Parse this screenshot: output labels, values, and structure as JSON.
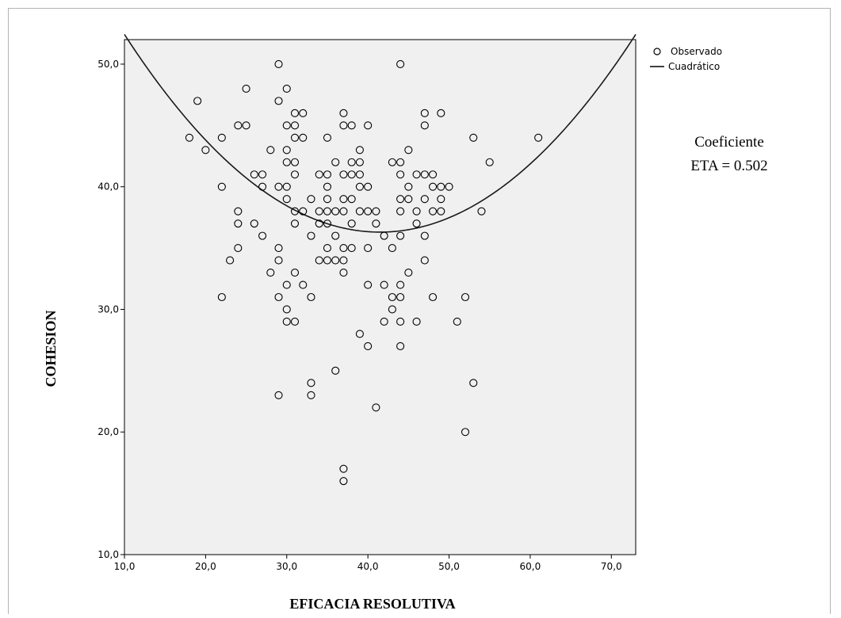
{
  "chart_data": {
    "type": "scatter",
    "xlabel": "EFICACIA RESOLUTIVA",
    "ylabel": "COHESION",
    "xlim": [
      10,
      73
    ],
    "ylim": [
      10,
      52
    ],
    "x_ticks": [
      "10,0",
      "20,0",
      "30,0",
      "40,0",
      "50,0",
      "60,0",
      "70,0"
    ],
    "x_tick_values": [
      10,
      20,
      30,
      40,
      50,
      60,
      70
    ],
    "y_ticks": [
      "10,0",
      "20,0",
      "30,0",
      "40,0",
      "50,0"
    ],
    "y_tick_values": [
      10,
      20,
      30,
      40,
      50
    ],
    "grid": false,
    "plot_background": "#f0f0f0",
    "legend": {
      "position": "top-right-outside",
      "entries": [
        {
          "label": "Observado",
          "marker": "circle"
        },
        {
          "label": "Cuadrático",
          "marker": "line"
        }
      ]
    },
    "annotation": {
      "lines": [
        "Coeficiente",
        "ETA = 0.502"
      ]
    },
    "series": [
      {
        "name": "Observado",
        "kind": "points",
        "color": "#000000",
        "points": [
          [
            18,
            44
          ],
          [
            19,
            47
          ],
          [
            20,
            43
          ],
          [
            22,
            44
          ],
          [
            22,
            40
          ],
          [
            22,
            31
          ],
          [
            23,
            34
          ],
          [
            24,
            45
          ],
          [
            24,
            38
          ],
          [
            24,
            37
          ],
          [
            24,
            35
          ],
          [
            25,
            48
          ],
          [
            25,
            45
          ],
          [
            26,
            41
          ],
          [
            26,
            37
          ],
          [
            27,
            41
          ],
          [
            27,
            40
          ],
          [
            27,
            36
          ],
          [
            28,
            43
          ],
          [
            28,
            33
          ],
          [
            29,
            50
          ],
          [
            29,
            47
          ],
          [
            29,
            40
          ],
          [
            29,
            35
          ],
          [
            29,
            34
          ],
          [
            29,
            31
          ],
          [
            29,
            23
          ],
          [
            30,
            48
          ],
          [
            30,
            45
          ],
          [
            30,
            43
          ],
          [
            30,
            42
          ],
          [
            30,
            40
          ],
          [
            30,
            39
          ],
          [
            30,
            32
          ],
          [
            30,
            30
          ],
          [
            30,
            29
          ],
          [
            31,
            46
          ],
          [
            31,
            45
          ],
          [
            31,
            44
          ],
          [
            31,
            42
          ],
          [
            31,
            41
          ],
          [
            31,
            38
          ],
          [
            31,
            37
          ],
          [
            31,
            33
          ],
          [
            31,
            29
          ],
          [
            32,
            46
          ],
          [
            32,
            44
          ],
          [
            32,
            38
          ],
          [
            32,
            32
          ],
          [
            33,
            39
          ],
          [
            33,
            36
          ],
          [
            33,
            31
          ],
          [
            33,
            24
          ],
          [
            33,
            23
          ],
          [
            34,
            41
          ],
          [
            34,
            38
          ],
          [
            34,
            37
          ],
          [
            34,
            34
          ],
          [
            35,
            44
          ],
          [
            35,
            41
          ],
          [
            35,
            40
          ],
          [
            35,
            39
          ],
          [
            35,
            38
          ],
          [
            35,
            37
          ],
          [
            35,
            35
          ],
          [
            35,
            34
          ],
          [
            36,
            42
          ],
          [
            36,
            38
          ],
          [
            36,
            36
          ],
          [
            36,
            34
          ],
          [
            36,
            25
          ],
          [
            37,
            46
          ],
          [
            37,
            45
          ],
          [
            37,
            41
          ],
          [
            37,
            39
          ],
          [
            37,
            38
          ],
          [
            37,
            35
          ],
          [
            37,
            34
          ],
          [
            37,
            33
          ],
          [
            37,
            17
          ],
          [
            37,
            16
          ],
          [
            38,
            45
          ],
          [
            38,
            42
          ],
          [
            38,
            41
          ],
          [
            38,
            39
          ],
          [
            38,
            37
          ],
          [
            38,
            35
          ],
          [
            39,
            43
          ],
          [
            39,
            42
          ],
          [
            39,
            41
          ],
          [
            39,
            40
          ],
          [
            39,
            38
          ],
          [
            39,
            28
          ],
          [
            40,
            45
          ],
          [
            40,
            40
          ],
          [
            40,
            38
          ],
          [
            40,
            35
          ],
          [
            40,
            32
          ],
          [
            40,
            27
          ],
          [
            41,
            38
          ],
          [
            41,
            37
          ],
          [
            41,
            22
          ],
          [
            42,
            36
          ],
          [
            42,
            32
          ],
          [
            42,
            29
          ],
          [
            43,
            42
          ],
          [
            43,
            35
          ],
          [
            43,
            31
          ],
          [
            43,
            30
          ],
          [
            44,
            50
          ],
          [
            44,
            42
          ],
          [
            44,
            41
          ],
          [
            44,
            39
          ],
          [
            44,
            38
          ],
          [
            44,
            36
          ],
          [
            44,
            32
          ],
          [
            44,
            31
          ],
          [
            44,
            29
          ],
          [
            44,
            27
          ],
          [
            45,
            43
          ],
          [
            45,
            40
          ],
          [
            45,
            39
          ],
          [
            45,
            33
          ],
          [
            46,
            41
          ],
          [
            46,
            38
          ],
          [
            46,
            37
          ],
          [
            46,
            29
          ],
          [
            47,
            46
          ],
          [
            47,
            45
          ],
          [
            47,
            41
          ],
          [
            47,
            39
          ],
          [
            47,
            36
          ],
          [
            47,
            34
          ],
          [
            48,
            41
          ],
          [
            48,
            40
          ],
          [
            48,
            38
          ],
          [
            48,
            31
          ],
          [
            49,
            46
          ],
          [
            49,
            40
          ],
          [
            49,
            39
          ],
          [
            49,
            38
          ],
          [
            50,
            40
          ],
          [
            51,
            29
          ],
          [
            52,
            31
          ],
          [
            52,
            20
          ],
          [
            53,
            44
          ],
          [
            53,
            24
          ],
          [
            54,
            38
          ],
          [
            55,
            42
          ],
          [
            61,
            44
          ]
        ]
      },
      {
        "name": "Cuadrático",
        "kind": "curve",
        "color": "#1a1a1a",
        "equation": "y = 0.01625*(x-41.5)^2 + 36.3"
      }
    ]
  }
}
